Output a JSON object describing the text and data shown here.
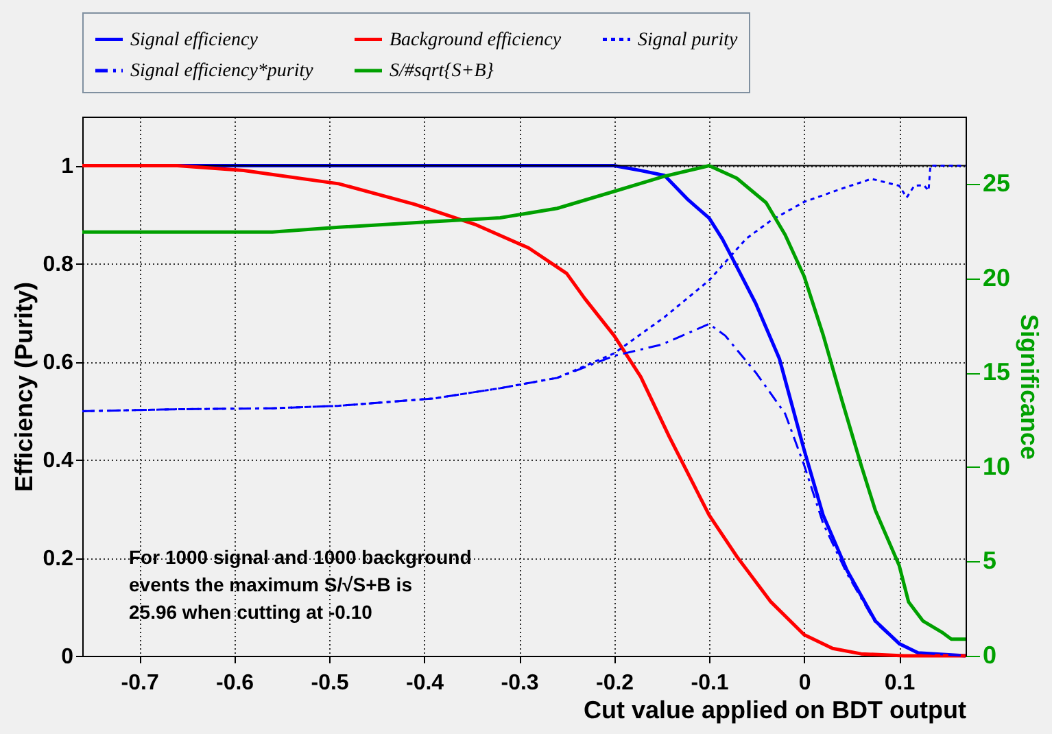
{
  "chart_data": {
    "type": "line",
    "xlabel": "Cut value applied on BDT output",
    "ylabel": "Efficiency (Purity)",
    "y2label": "Significance",
    "xlim": [
      -0.76,
      0.17
    ],
    "xticks": [
      -0.7,
      -0.6,
      -0.5,
      -0.4,
      -0.3,
      -0.2,
      -0.1,
      0,
      0.1
    ],
    "ylim": [
      0,
      1.1
    ],
    "yticks": [
      0,
      0.2,
      0.4,
      0.6,
      0.8,
      1
    ],
    "y2lim": [
      0,
      28.56
    ],
    "y2ticks": [
      0,
      5,
      10,
      15,
      20,
      25
    ],
    "grid": true,
    "legend": "top",
    "marker": "none",
    "ref_lines": [
      {
        "axis": "y",
        "value": 1,
        "color": "#000000"
      }
    ],
    "annotations": [
      "For 1000 signal and 1000 background\nevents the maximum S/√S+B is\n25.96 when cutting at -0.10"
    ],
    "series": [
      {
        "name": "Signal efficiency",
        "color": "#0000ff",
        "line_style": "solid",
        "x": [
          -0.76,
          -0.2,
          -0.172,
          -0.147,
          -0.122,
          -0.1,
          -0.086,
          -0.071,
          -0.051,
          -0.026,
          0,
          0.02,
          0.045,
          0.075,
          0.1,
          0.12,
          0.17
        ],
        "values": [
          1,
          1,
          0.99,
          0.98,
          0.93,
          0.893,
          0.85,
          0.794,
          0.719,
          0.606,
          0.42,
          0.287,
          0.175,
          0.071,
          0.025,
          0.006,
          0
        ]
      },
      {
        "name": "Background efficiency",
        "color": "#ff0000",
        "line_style": "solid",
        "x": [
          -0.76,
          -0.66,
          -0.59,
          -0.49,
          -0.41,
          -0.345,
          -0.29,
          -0.25,
          -0.231,
          -0.2,
          -0.172,
          -0.142,
          -0.1,
          -0.071,
          -0.035,
          0,
          0.03,
          0.06,
          0.105,
          0.17
        ],
        "values": [
          1,
          1,
          0.99,
          0.963,
          0.921,
          0.879,
          0.832,
          0.78,
          0.729,
          0.653,
          0.569,
          0.447,
          0.287,
          0.203,
          0.11,
          0.043,
          0.015,
          0.004,
          0,
          0
        ]
      },
      {
        "name": "Signal purity",
        "color": "#0000ff",
        "line_style": "dotted",
        "x": [
          -0.76,
          -0.66,
          -0.56,
          -0.49,
          -0.39,
          -0.32,
          -0.26,
          -0.2,
          -0.147,
          -0.1,
          -0.061,
          -0.035,
          0,
          0.041,
          0.071,
          0.1,
          0.108,
          0.116,
          0.126,
          0.131,
          0.133,
          0.17
        ],
        "values": [
          0.499,
          0.503,
          0.505,
          0.51,
          0.525,
          0.546,
          0.567,
          0.617,
          0.691,
          0.766,
          0.851,
          0.888,
          0.926,
          0.954,
          0.973,
          0.959,
          0.935,
          0.959,
          0.96,
          0.949,
          1,
          1
        ]
      },
      {
        "name": "Signal efficiency*purity",
        "color": "#0000ff",
        "line_style": "dashed",
        "x": [
          -0.76,
          -0.66,
          -0.56,
          -0.49,
          -0.39,
          -0.32,
          -0.26,
          -0.2,
          -0.15,
          -0.1,
          -0.083,
          -0.051,
          -0.02,
          0,
          0.02,
          0.045,
          0.075,
          0.1,
          0.12,
          0.17
        ],
        "values": [
          0.499,
          0.503,
          0.505,
          0.51,
          0.525,
          0.546,
          0.567,
          0.612,
          0.635,
          0.677,
          0.653,
          0.578,
          0.494,
          0.389,
          0.27,
          0.168,
          0.068,
          0.024,
          0.006,
          0
        ]
      },
      {
        "name": "S/#sqrt{S+B}",
        "color": "#00a000",
        "line_style": "solid",
        "axis": "y2",
        "x": [
          -0.76,
          -0.56,
          -0.49,
          -0.39,
          -0.32,
          -0.26,
          -0.2,
          -0.147,
          -0.1,
          -0.071,
          -0.04,
          -0.02,
          0,
          0.02,
          0.04,
          0.06,
          0.075,
          0.1,
          0.11,
          0.125,
          0.145,
          0.155,
          0.17
        ],
        "values": [
          22.45,
          22.45,
          22.7,
          23.0,
          23.2,
          23.7,
          24.6,
          25.4,
          25.96,
          25.3,
          24.0,
          22.3,
          20.1,
          17.0,
          13.5,
          10.1,
          7.7,
          4.8,
          2.85,
          1.85,
          1.25,
          0.88,
          0.88
        ]
      }
    ]
  }
}
